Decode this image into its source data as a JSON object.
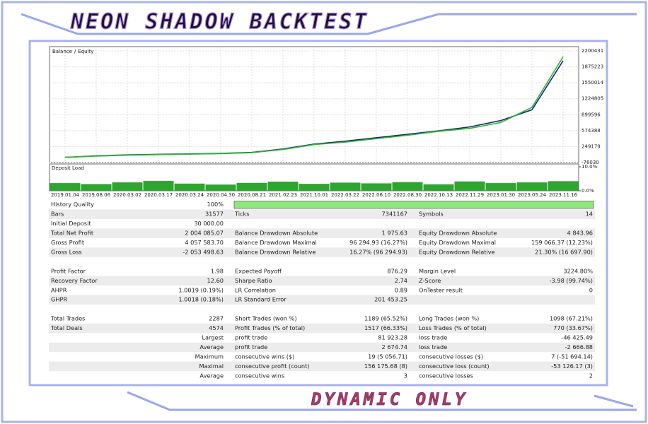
{
  "header": {
    "title": "NEON SHADOW BACKTEST",
    "footer": "DYNAMIC ONLY"
  },
  "chart_data": [
    {
      "type": "line",
      "legend_separator": "/",
      "categories": [
        "2019.01.04",
        "2019.08.06",
        "2020.03.02",
        "2020.03.17",
        "2020.03.24",
        "2020.04.30",
        "2020.08.21",
        "2021.02.23",
        "2021.10.01",
        "2022.03.22",
        "2022.06.10",
        "2022.08.30",
        "2022.10.13",
        "2022.11.29",
        "2023.01.30",
        "2023.05.24",
        "2023.11.16"
      ],
      "series": [
        {
          "name": "Balance",
          "color": "#1a237e",
          "values": [
            30000,
            60000,
            80000,
            90000,
            100000,
            110000,
            130000,
            200000,
            300000,
            360000,
            430000,
            500000,
            570000,
            650000,
            780000,
            1000000,
            2000000
          ]
        },
        {
          "name": "Equity",
          "color": "#2eb82e",
          "values": [
            30000,
            55000,
            75000,
            85000,
            95000,
            105000,
            125000,
            190000,
            290000,
            340000,
            410000,
            480000,
            560000,
            620000,
            740000,
            1050000,
            2080000
          ]
        }
      ],
      "ylim": [
        -76030,
        2200431
      ],
      "yticks": [
        -76030,
        249179,
        574388,
        899596,
        1224805,
        1550014,
        1875223,
        2200431
      ]
    },
    {
      "type": "bar",
      "title": "Deposit Load",
      "color": "#2ea52e",
      "values": [
        3.2,
        2.8,
        3.5,
        4.1,
        3.0,
        2.6,
        3.3,
        3.8,
        2.9,
        3.4,
        3.1,
        3.6,
        2.7,
        3.9,
        3.2,
        3.5,
        4.0
      ],
      "ylim": [
        0,
        10
      ],
      "yticks": [
        {
          "value": 0,
          "label": "0.0%"
        },
        {
          "value": 10,
          "label": "10.0%"
        }
      ]
    }
  ],
  "report": {
    "groups": [
      [
        [
          "History Quality",
          "100%",
          null,
          null,
          null,
          null
        ],
        [
          "Bars",
          "31577",
          "Ticks",
          "7341167",
          "Symbols",
          "14"
        ],
        [
          "Initial Deposit",
          "30 000.00",
          null,
          null,
          null,
          null
        ],
        [
          "Total Net Profit",
          "2 004 085.07",
          "Balance Drawdown Absolute",
          "1 975.63",
          "Equity Drawdown Absolute",
          "4 843.96"
        ],
        [
          "Gross Profit",
          "4 057 583.70",
          "Balance Drawdown Maximal",
          "96 294.93 (16.27%)",
          "Equity Drawdown Maximal",
          "159 066.37 (12.23%)"
        ],
        [
          "Gross Loss",
          "-2 053 498.63",
          "Balance Drawdown Relative",
          "16.27% (96 294.93)",
          "Equity Drawdown Relative",
          "21.30% (16 697.90)"
        ]
      ],
      [
        [
          "Profit Factor",
          "1.98",
          "Expected Payoff",
          "876.29",
          "Margin Level",
          "3224.80%"
        ],
        [
          "Recovery Factor",
          "12.60",
          "Sharpe Ratio",
          "2.74",
          "Z-Score",
          "-3.98 (99.74%)"
        ],
        [
          "AHPR",
          "1.0019 (0.19%)",
          "LR Correlation",
          "0.89",
          "OnTester result",
          "0"
        ],
        [
          "GHPR",
          "1.0018 (0.18%)",
          "LR Standard Error",
          "201 453.25",
          null,
          null
        ]
      ],
      [
        [
          "Total Trades",
          "2287",
          "Short Trades (won %)",
          "1189 (65.52%)",
          "Long Trades (won %)",
          "1098 (67.21%)"
        ],
        [
          "Total Deals",
          "4574",
          "Profit Trades (% of total)",
          "1517 (66.33%)",
          "Loss Trades (% of total)",
          "770 (33.67%)"
        ],
        [
          null,
          "Largest",
          "profit trade",
          "81 923.28",
          "loss trade",
          "-46 425.49"
        ],
        [
          null,
          "Average",
          "profit trade",
          "2 674.74",
          "loss trade",
          "-2 666.88"
        ],
        [
          null,
          "Maximum",
          "consecutive wins ($)",
          "19 (5 056.71)",
          "consecutive losses ($)",
          "7 (-51 694.14)"
        ],
        [
          null,
          "Maximal",
          "consecutive profit (count)",
          "156 175.68 (8)",
          "consecutive loss (count)",
          "-53 126.17 (3)"
        ],
        [
          null,
          "Average",
          "consecutive wins",
          "3",
          "consecutive losses",
          "2"
        ]
      ]
    ]
  }
}
